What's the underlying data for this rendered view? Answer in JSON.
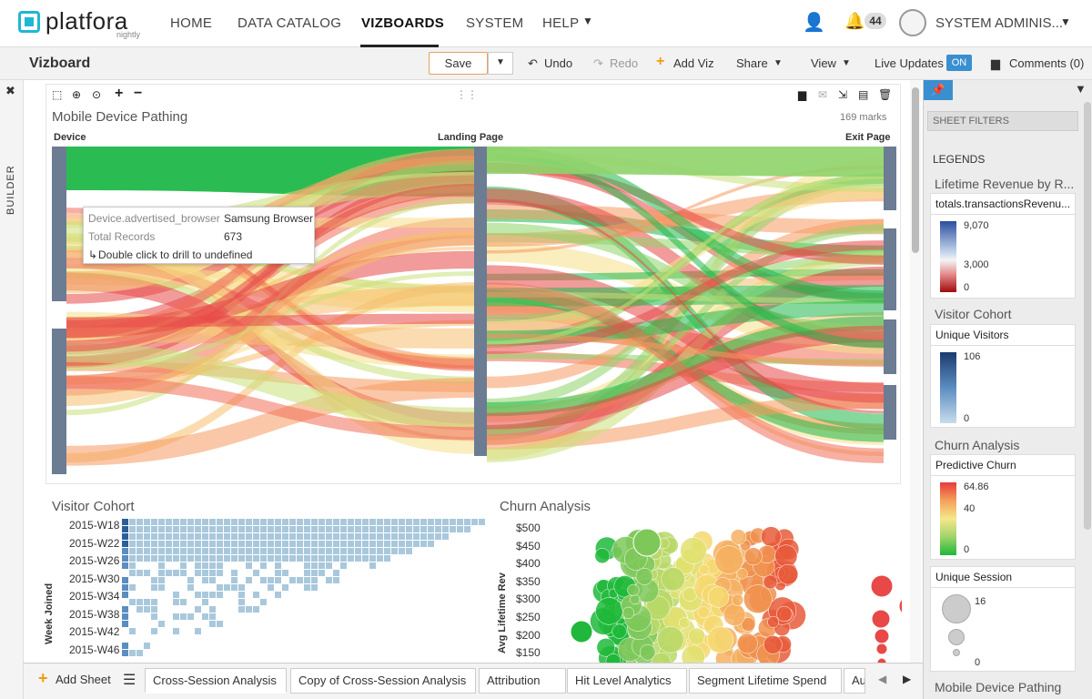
{
  "nav": {
    "logo": "platfora",
    "logo_sub": "nightly",
    "items": [
      "HOME",
      "DATA CATALOG",
      "VIZBOARDS",
      "SYSTEM",
      "HELP"
    ],
    "notification_count": "44",
    "user": "SYSTEM ADMINIS..."
  },
  "toolbar": {
    "title": "Vizboard",
    "save": "Save",
    "undo": "Undo",
    "redo": "Redo",
    "add_viz": "Add Viz",
    "share": "Share",
    "view": "View",
    "live_updates": "Live Updates",
    "live_state": "ON",
    "comments": "Comments (0)"
  },
  "builder_label": "BUILDER",
  "sankey": {
    "title": "Mobile Device Pathing",
    "marks": "169 marks",
    "col_device": "Device",
    "col_landing": "Landing Page",
    "col_exit": "Exit Page"
  },
  "tooltip": {
    "k1": "Device.advertised_browser",
    "v1": "Samsung Browser",
    "k2": "Total Records",
    "v2": "673",
    "action": "Double click to drill to undefined"
  },
  "cohort": {
    "title": "Visitor Cohort",
    "ylabel": "Week Joined",
    "weeks": [
      "2015-W18",
      "2015-W22",
      "2015-W26",
      "2015-W30",
      "2015-W34",
      "2015-W38",
      "2015-W42",
      "2015-W46"
    ]
  },
  "chart_data": {
    "type": "scatter",
    "title": "Churn Analysis",
    "ylabel": "Avg Lifetime Rev",
    "y_ticks": [
      "$500",
      "$450",
      "$400",
      "$350",
      "$300",
      "$250",
      "$200",
      "$150"
    ],
    "ylim": [
      150,
      500
    ]
  },
  "panel": {
    "sheet_filters": "SHEET FILTERS",
    "legends": "LEGENDS",
    "sections": [
      {
        "title": "Lifetime Revenue by R...",
        "head": "totals.transactionsRevenu...",
        "ticks": [
          "9,070",
          "3,000",
          "0"
        ]
      },
      {
        "title": "Visitor Cohort",
        "head": "Unique Visitors",
        "ticks": [
          "106",
          "0"
        ]
      },
      {
        "title": "Churn Analysis",
        "head": "Predictive Churn",
        "ticks": [
          "64.86",
          "40",
          "0"
        ]
      },
      {
        "title": "",
        "head": "Unique Session",
        "ticks": [
          "16",
          "0"
        ]
      }
    ],
    "footer": "Mobile Device Pathing"
  },
  "sheets": {
    "add": "Add Sheet",
    "tabs": [
      "Cross-Session Analysis",
      "Copy of Cross-Session Analysis",
      "Attribution",
      "Hit Level Analytics",
      "Segment Lifetime Spend",
      "Au"
    ]
  },
  "colors": {
    "accent": "#1fb7d4",
    "toggle": "#3a8fd0",
    "node": "#6b7c93"
  }
}
